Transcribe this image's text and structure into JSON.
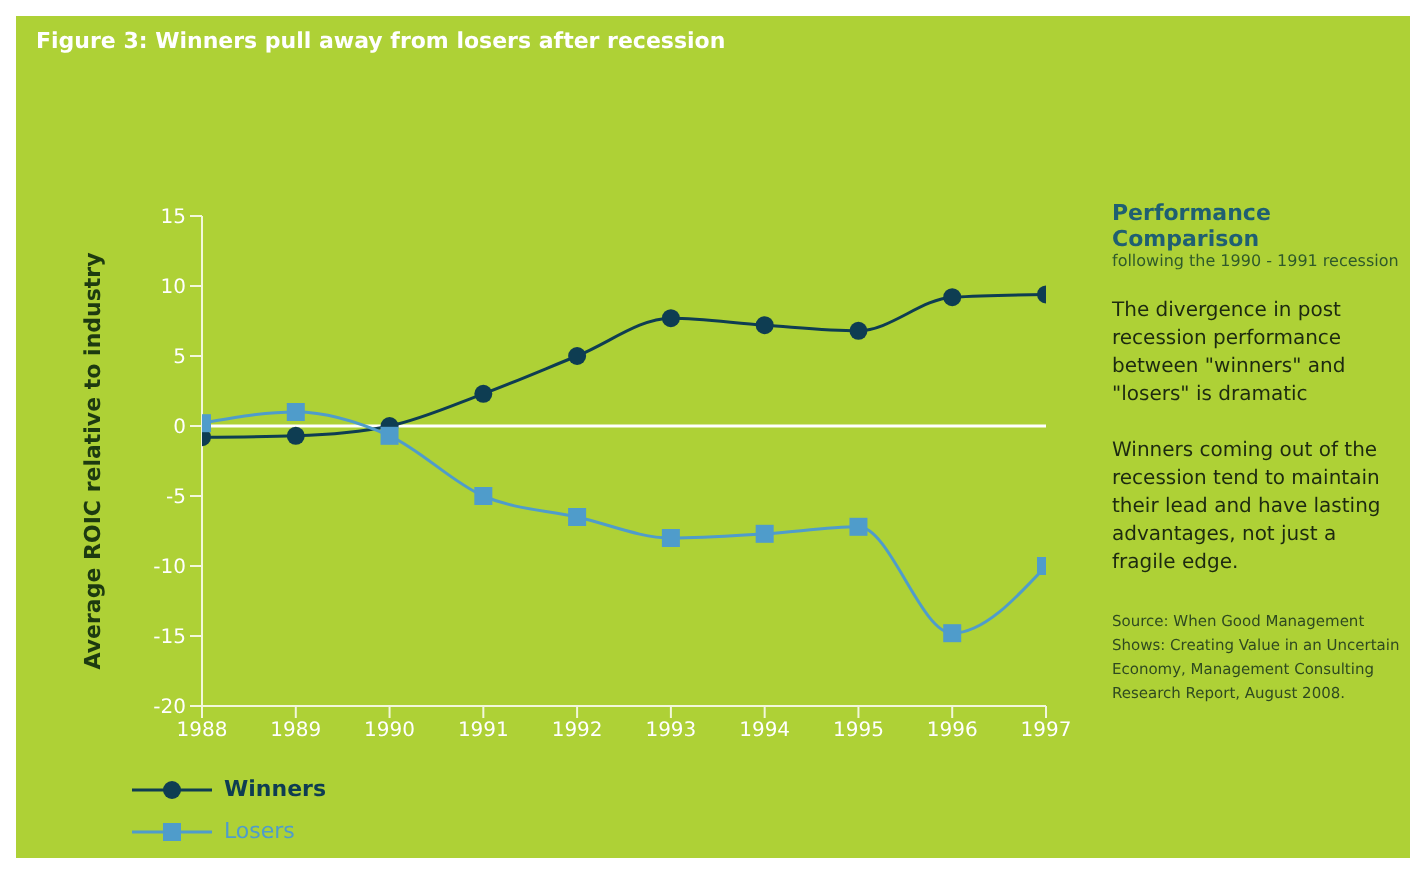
{
  "chart_data": {
    "type": "line",
    "title": "Figure 3: Winners pull away from losers after recession",
    "ylabel": "Average ROIC relative to industry",
    "x": [
      1988,
      1989,
      1990,
      1991,
      1992,
      1993,
      1994,
      1995,
      1996,
      1997
    ],
    "series": [
      {
        "name": "Winners",
        "color": "#0e3d52",
        "marker": "circle",
        "values": [
          -0.8,
          -0.7,
          0,
          2.3,
          5,
          7.7,
          7.2,
          6.8,
          9.2,
          9.4
        ]
      },
      {
        "name": "Losers",
        "color": "#4f9ccb",
        "marker": "square",
        "values": [
          0.2,
          1.0,
          -0.7,
          -5,
          -6.5,
          -8,
          -7.7,
          -7.2,
          -14.8,
          -10
        ]
      }
    ],
    "xlim": [
      1988,
      1997
    ],
    "xticks": [
      1988,
      1989,
      1990,
      1991,
      1992,
      1993,
      1994,
      1995,
      1996,
      1997
    ],
    "ylim": [
      -20,
      15
    ],
    "yticks": [
      -20,
      -15,
      -10,
      -5,
      0,
      5,
      10,
      15
    ],
    "grid": false,
    "legend": "bottom left",
    "line_style": "solid",
    "ref_lines": [
      {
        "axis": "y",
        "value": 0,
        "color": "#ffffff"
      }
    ],
    "annotations": [
      "Performance Comparison",
      "following the 1990 - 1991 recession",
      "The divergence in post recession performance between \"winners\" and \"losers\" is dramatic",
      "Winners coming out of the recession tend to maintain their lead and have lasting advantages, not just a fragile edge.",
      "Source: When Good Management Shows: Creating Value in an Uncertain Economy, Management Consulting Research Report, August 2008."
    ]
  }
}
